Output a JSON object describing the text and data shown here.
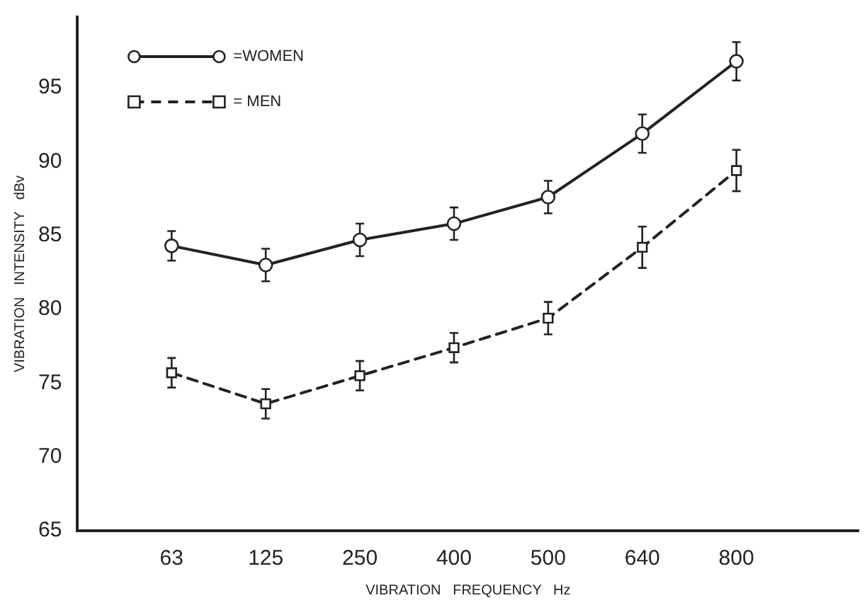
{
  "chart_data": {
    "type": "line",
    "xlabel": "VIBRATION   FREQUENCY   Hz",
    "ylabel": "VIBRATION   INTENSITY   dBv",
    "categories": [
      "63",
      "125",
      "250",
      "400",
      "500",
      "640",
      "800"
    ],
    "series": [
      {
        "name": "=WOMEN",
        "color": "#222222",
        "marker": "circle",
        "line_style": "solid",
        "values": [
          84.3,
          83.0,
          84.7,
          85.8,
          87.6,
          91.9,
          96.8
        ],
        "errors": [
          1.0,
          1.1,
          1.1,
          1.1,
          1.1,
          1.3,
          1.3
        ]
      },
      {
        "name": "= MEN",
        "color": "#222222",
        "marker": "square",
        "line_style": "dashed",
        "values": [
          75.7,
          73.6,
          75.5,
          77.4,
          79.4,
          84.2,
          89.4
        ],
        "errors": [
          1.0,
          1.0,
          1.0,
          1.0,
          1.1,
          1.4,
          1.4
        ]
      }
    ],
    "ylim": [
      65,
      99.8
    ],
    "yticks": [
      65,
      70,
      75,
      80,
      85,
      90,
      95
    ],
    "grid": false,
    "legend": "top left"
  }
}
